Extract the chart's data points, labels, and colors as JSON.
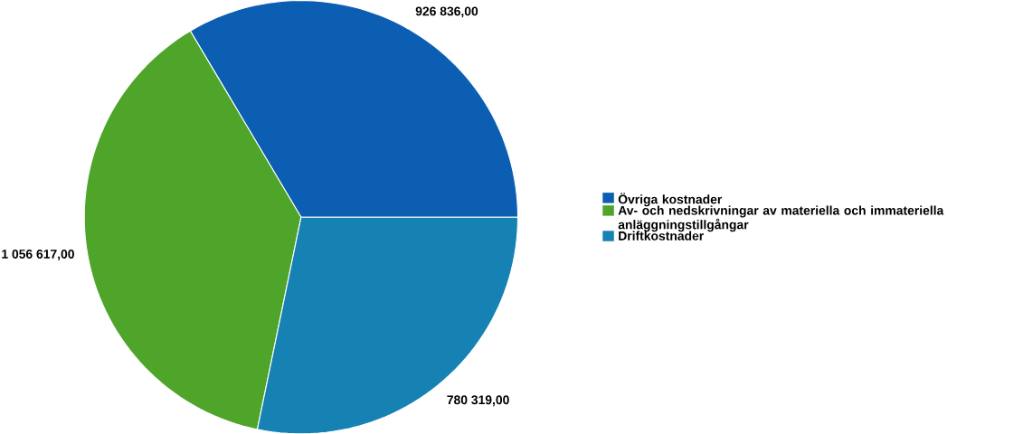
{
  "chart_data": {
    "type": "pie",
    "categories": [
      "Övriga kostnader",
      "Av- och nedskrivningar av materiella och immateriella anläggningstillgångar",
      "Driftkostnader"
    ],
    "values": [
      926836,
      1056617,
      780319
    ],
    "value_labels": [
      "926 836,00",
      "1 056 617,00",
      "780 319,00"
    ],
    "colors": [
      "#0c5eb2",
      "#4fa42a",
      "#1681b3"
    ],
    "legend": "right"
  }
}
